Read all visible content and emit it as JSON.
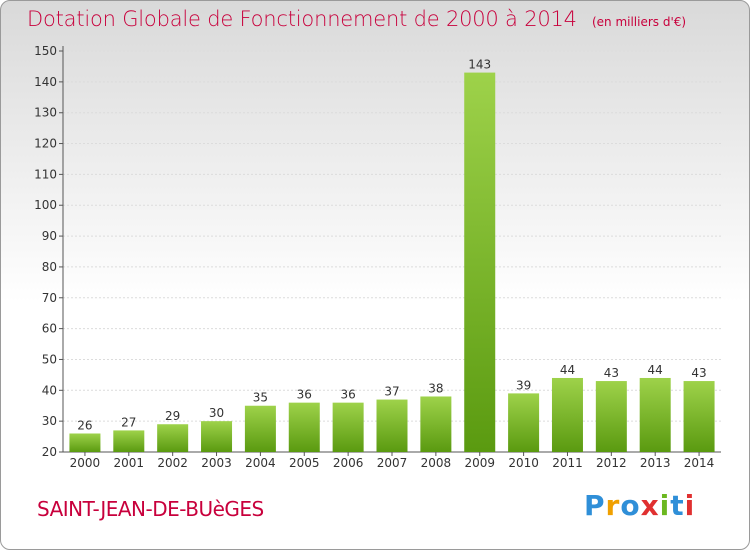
{
  "title": "Dotation Globale de Fonctionnement de 2000 à 2014",
  "subtitle": "(en milliers d'€)",
  "commune": "SAINT-JEAN-DE-BUèGES",
  "logo": {
    "letters": [
      "P",
      "r",
      "o",
      "x",
      "i",
      "t",
      "i"
    ],
    "colors": [
      "#2f8fd8",
      "#f0a000",
      "#2f8fd8",
      "#e03030",
      "#6cb820",
      "#2f8fd8",
      "#e03030"
    ]
  },
  "colors": {
    "bar_light": "#9ed24a",
    "bar_dark": "#5a9a10",
    "accent": "#c8003c"
  },
  "chart_data": {
    "type": "bar",
    "categories": [
      "2000",
      "2001",
      "2002",
      "2003",
      "2004",
      "2005",
      "2006",
      "2007",
      "2008",
      "2009",
      "2010",
      "2011",
      "2012",
      "2013",
      "2014"
    ],
    "values": [
      26,
      27,
      29,
      30,
      35,
      36,
      36,
      37,
      38,
      143,
      39,
      44,
      43,
      44,
      43
    ],
    "ylim": [
      20,
      150
    ],
    "yticks": [
      20,
      30,
      40,
      50,
      60,
      70,
      80,
      90,
      100,
      110,
      120,
      130,
      140,
      150
    ],
    "grid": true
  }
}
